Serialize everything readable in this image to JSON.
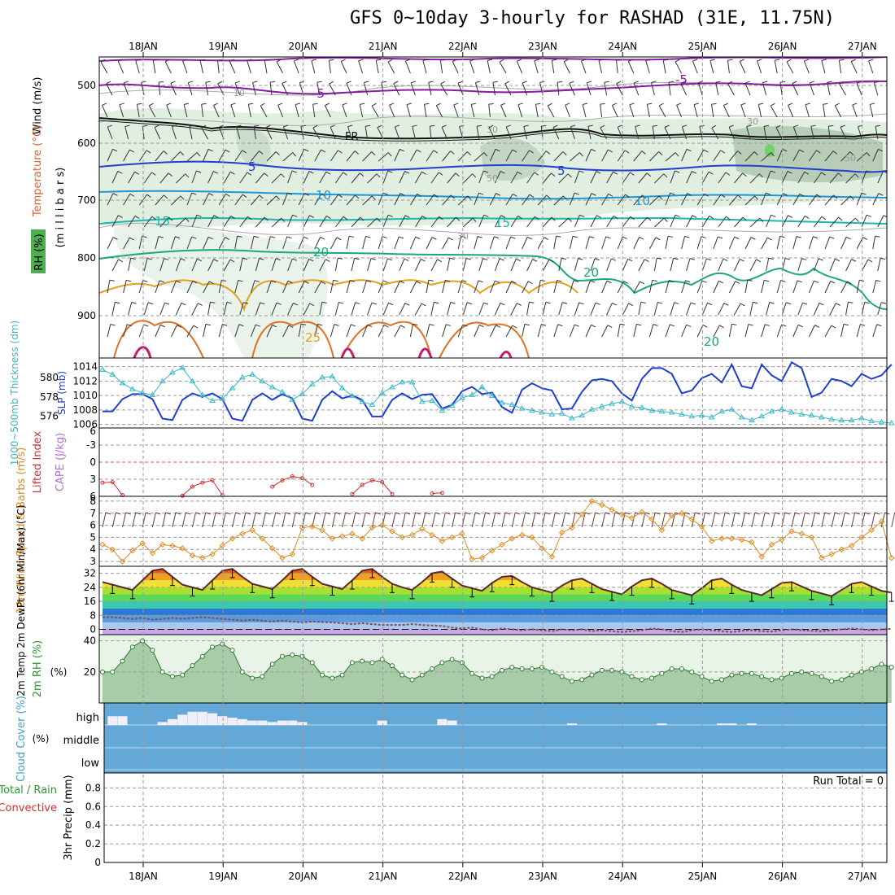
{
  "title": "GFS 0~10day 3-hourly for RASHAD (31E, 11.75N)",
  "dates": [
    "18JAN",
    "19JAN",
    "20JAN",
    "21JAN",
    "22JAN",
    "23JAN",
    "24JAN",
    "25JAN",
    "26JAN",
    "27JAN"
  ],
  "colors": {
    "blue": "#1f3fd0",
    "cyan": "#3ab8c8",
    "orange": "#e08a20",
    "green": "#2a9a2a",
    "purple": "#8a1aa8",
    "red": "#d03030",
    "cloud": "#64a8d8"
  },
  "panels": {
    "upper": {
      "ylabel_wind": "Wind (m/s)",
      "ylabel_temp": "Temperature (°C)",
      "ylabel_rh": "RH (%)",
      "ylabel_mb": "(m i l l i b a r s)",
      "yticks": [
        "500",
        "600",
        "700",
        "800",
        "900"
      ],
      "contours": {
        "m5a": "-5",
        "m5b": "-5",
        "fr": "FR",
        "c5a": "5",
        "c5b": "5",
        "c10a": "10",
        "c10b": "10",
        "c15a": "15",
        "c15b": "15",
        "c20a": "20",
        "c20b": "20",
        "c20c": "20",
        "c25": "25",
        "r30a": "30",
        "r30b": "30",
        "r30c": "30",
        "r50a": "50",
        "r50b": "50",
        "r10": "10"
      }
    },
    "slp": {
      "ylabel_thk": "1000~500mb Thickness (dm)",
      "ylabel_slp": "SLP (mb)",
      "left_ticks": [
        "580",
        "578",
        "576"
      ],
      "right_ticks": [
        "1014",
        "1012",
        "1010",
        "1008",
        "1006"
      ]
    },
    "li": {
      "ylabel_li": "Lifted Index",
      "ylabel_cape": "CAPE (J/kg)",
      "yticks": [
        "-3",
        "0",
        "3",
        "6"
      ],
      "yticks_top": "6"
    },
    "wind": {
      "ylabel": "10m Wind Speed & Barbs (m/s)",
      "yticks": [
        "8",
        "7",
        "6",
        "5",
        "4",
        "3"
      ]
    },
    "temp": {
      "ylabel": "2m Temp 2m DewPt (6hr Min/Max) (°C)",
      "yticks": [
        "32",
        "24",
        "16",
        "8",
        "0"
      ]
    },
    "rh": {
      "ylabel": "2m RH (%)",
      "yticks": [
        "40",
        "20"
      ]
    },
    "cloud": {
      "ylabel": "Cloud Cover (%)",
      "levels": [
        "high",
        "middle",
        "low"
      ]
    },
    "precip": {
      "ylabel_total": "Total / Rain",
      "ylabel_conv": "Convective",
      "ylabel": "3hr Precip (mm)",
      "yticks": [
        "0.8",
        "0.6",
        "0.4",
        "0.2",
        "0"
      ],
      "run_total": "Run Total = 0"
    }
  },
  "chart_data": [
    {
      "type": "line",
      "title": "1000~500mb Thickness (dm) / SLP (mb)",
      "x_hours": [
        0,
        3,
        6,
        9,
        12,
        15,
        18,
        21,
        24,
        27,
        30,
        33,
        36,
        39,
        42,
        45,
        48,
        51,
        54,
        57,
        60,
        63,
        66,
        69,
        72,
        75,
        78,
        81,
        84,
        87,
        90,
        93,
        96,
        99,
        102,
        105,
        108,
        111,
        114,
        117,
        120,
        123,
        126,
        129,
        132,
        135,
        138,
        141,
        144,
        147,
        150,
        153,
        156,
        159,
        162,
        165,
        168,
        171,
        174,
        177,
        180,
        183,
        186,
        189,
        192,
        195,
        198,
        201,
        204,
        207,
        210,
        213,
        216,
        219,
        222,
        225,
        228,
        231,
        234,
        237
      ],
      "series": [
        {
          "name": "SLP",
          "axis": "right",
          "ylim": [
            1005.5,
            1015.2
          ],
          "values": [
            1007.8,
            1007.8,
            1009.5,
            1010.2,
            1010.2,
            1009.5,
            1006.8,
            1006.6,
            1009.4,
            1010.3,
            1009.8,
            1010.3,
            1009.5,
            1006.8,
            1006.5,
            1009.4,
            1010.3,
            1009.4,
            1010.2,
            1009.6,
            1006.8,
            1006.5,
            1009.4,
            1010.6,
            1009.6,
            1010.0,
            1009.4,
            1007.1,
            1007.1,
            1009.4,
            1010.3,
            1009.5,
            1010.1,
            1010.2,
            1008.2,
            1008.7,
            1010.6,
            1011.2,
            1010.2,
            1010.4,
            1008.4,
            1007.6,
            1010.8,
            1011.7,
            1011.0,
            1010.7,
            1008.1,
            1008.2,
            1010.5,
            1012.1,
            1012.3,
            1012.0,
            1010.3,
            1009.3,
            1012.3,
            1013.8,
            1013.8,
            1013.0,
            1010.3,
            1010.7,
            1012.4,
            1013.0,
            1011.8,
            1014.3,
            1011.3,
            1011.0,
            1014.3,
            1012.8,
            1012.0,
            1014.6,
            1013.8,
            1009.8,
            1010.4,
            1012.3,
            1012.0,
            1011.3,
            1013.0,
            1012.3,
            1012.8,
            1014.3
          ]
        },
        {
          "name": "Thickness",
          "axis": "left",
          "ylim": [
            574.8,
            582.0
          ],
          "values": [
            580.8,
            580.3,
            579.4,
            578.8,
            578.4,
            578.2,
            579.6,
            580.5,
            581.0,
            579.6,
            578.2,
            577.6,
            577.8,
            578.9,
            580.0,
            580.3,
            579.6,
            579.0,
            578.5,
            577.7,
            578.3,
            579.3,
            580.0,
            580.1,
            578.9,
            578.1,
            577.5,
            577.2,
            578.4,
            579.0,
            579.5,
            579.5,
            577.5,
            577.6,
            576.6,
            577.1,
            577.9,
            578.2,
            579.0,
            578.1,
            577.4,
            577.2,
            576.8,
            576.6,
            576.4,
            576.2,
            576.3,
            575.8,
            576.1,
            576.7,
            577.0,
            577.3,
            577.5,
            577.0,
            576.9,
            576.6,
            576.5,
            576.4,
            576.2,
            576.0,
            576.1,
            575.9,
            576.5,
            576.7,
            575.9,
            575.6,
            576.0,
            576.5,
            576.7,
            576.4,
            576.2,
            576.1,
            575.9,
            575.7,
            575.6,
            575.6,
            575.8,
            575.5,
            575.4,
            575.3
          ]
        }
      ]
    },
    {
      "type": "line",
      "title": "Lifted Index",
      "ylim": [
        -6,
        6
      ],
      "x_hours": [
        0,
        3,
        6,
        24,
        27,
        30,
        33,
        36,
        51,
        54,
        57,
        60,
        63,
        75,
        78,
        81,
        84,
        87,
        99,
        102
      ],
      "values": [
        3.6,
        3.5,
        5.8,
        5.9,
        4.3,
        3.6,
        3.2,
        5.8,
        4.3,
        3.2,
        2.5,
        2.8,
        4.0,
        5.6,
        4.0,
        3.2,
        3.5,
        5.6,
        5.5,
        5.4
      ]
    },
    {
      "type": "line",
      "title": "10m Wind Speed (m/s)",
      "ylim": [
        2.6,
        8.4
      ],
      "x_hours": [
        0,
        3,
        6,
        9,
        12,
        15,
        18,
        21,
        24,
        27,
        30,
        33,
        36,
        39,
        42,
        45,
        48,
        51,
        54,
        57,
        60,
        63,
        66,
        69,
        72,
        75,
        78,
        81,
        84,
        87,
        90,
        93,
        96,
        99,
        102,
        105,
        108,
        111,
        114,
        117,
        120,
        123,
        126,
        129,
        132,
        135,
        138,
        141,
        144,
        147,
        150,
        153,
        156,
        159,
        162,
        165,
        168,
        171,
        174,
        177,
        180,
        183,
        186,
        189,
        192,
        195,
        198,
        201,
        204,
        207,
        210,
        213,
        216,
        219,
        222,
        225,
        228,
        231,
        234,
        237
      ],
      "values": [
        4.4,
        4.0,
        3.0,
        3.9,
        4.5,
        3.7,
        4.4,
        4.3,
        4.1,
        3.5,
        3.3,
        3.6,
        4.3,
        4.9,
        5.3,
        5.6,
        4.9,
        4.1,
        3.3,
        3.6,
        5.8,
        5.9,
        5.6,
        4.9,
        5.1,
        5.3,
        4.9,
        5.8,
        6.0,
        5.5,
        5.0,
        5.2,
        5.7,
        5.2,
        4.7,
        5.0,
        5.3,
        3.2,
        3.3,
        3.9,
        4.4,
        4.9,
        5.2,
        5.0,
        4.1,
        3.4,
        5.4,
        5.8,
        6.9,
        8.0,
        7.7,
        7.3,
        6.9,
        6.6,
        7.1,
        6.5,
        5.6,
        6.8,
        7.0,
        6.5,
        5.9,
        4.7,
        4.9,
        4.9,
        4.8,
        4.6,
        3.4,
        4.4,
        4.8,
        5.5,
        5.3,
        5.0,
        3.3,
        3.6,
        4.0,
        4.3,
        5.0,
        5.6,
        6.3,
        3.3
      ]
    },
    {
      "type": "area",
      "title": "2m Temp (°C)",
      "ylim": [
        -3,
        36
      ],
      "x_hours": [
        0,
        3,
        6,
        9,
        12,
        15,
        18,
        21,
        24,
        27,
        30,
        33,
        36,
        39,
        42,
        45,
        48,
        51,
        54,
        57,
        60,
        63,
        66,
        69,
        72,
        75,
        78,
        81,
        84,
        87,
        90,
        93,
        96,
        99,
        102,
        105,
        108,
        111,
        114,
        117,
        120,
        123,
        126,
        129,
        132,
        135,
        138,
        141,
        144,
        147,
        150,
        153,
        156,
        159,
        162,
        165,
        168,
        171,
        174,
        177,
        180,
        183,
        186,
        189,
        192,
        195,
        198,
        201,
        204,
        207,
        210,
        213,
        216,
        219,
        222,
        225,
        228,
        231,
        234,
        237
      ],
      "series": [
        {
          "name": "2m Temp",
          "values": [
            27,
            25.5,
            24,
            22.5,
            28,
            33.5,
            34.5,
            30,
            25.5,
            24,
            22.5,
            28,
            33.5,
            34.5,
            30,
            26,
            24.5,
            23,
            28,
            33.5,
            34.5,
            30,
            26,
            24.5,
            23,
            28,
            33.5,
            34.5,
            30,
            26,
            24,
            22.5,
            27,
            32,
            33,
            29,
            25,
            23.5,
            22,
            26.5,
            30,
            30.5,
            27,
            24,
            22.5,
            21,
            25,
            28,
            29,
            26,
            23,
            21.5,
            20,
            24.5,
            28,
            29,
            26,
            22.5,
            21,
            19.5,
            23.5,
            28,
            29,
            25.5,
            22.5,
            21,
            19.5,
            23,
            26.5,
            27,
            24.5,
            22,
            20.5,
            19,
            22.5,
            26,
            27,
            24.5,
            22,
            21
          ]
        },
        {
          "name": "2m DewPt",
          "values": [
            7,
            7,
            6.5,
            6,
            6.5,
            5.5,
            6,
            6.5,
            6,
            6.5,
            7,
            6.5,
            6,
            5.5,
            5,
            5.5,
            5,
            4.5,
            5,
            4.5,
            4,
            4.5,
            4.2,
            4,
            3.5,
            3,
            3.5,
            3,
            2.5,
            2.5,
            2.5,
            3,
            2.5,
            2.2,
            2,
            1,
            0.5,
            1,
            0,
            -0.5,
            0.5,
            0,
            -0.5,
            0,
            -0.5,
            -1,
            0,
            -0.5,
            0,
            -1,
            -0.5,
            -1,
            -1.5,
            -1,
            -0.5,
            0.5,
            0,
            -1,
            -1.5,
            -0.5,
            0,
            -0.5,
            -1,
            -1.5,
            -0.8,
            -0.5,
            -1,
            -1.2,
            -0.5,
            0,
            -0.5,
            -0.8,
            -1,
            -0.5,
            0,
            0.5,
            0,
            -0.5,
            0,
            0.3
          ]
        }
      ]
    },
    {
      "type": "area",
      "title": "2m RH (%)",
      "ylim": [
        0,
        44
      ],
      "x_hours": [
        0,
        3,
        6,
        9,
        12,
        15,
        18,
        21,
        24,
        27,
        30,
        33,
        36,
        39,
        42,
        45,
        48,
        51,
        54,
        57,
        60,
        63,
        66,
        69,
        72,
        75,
        78,
        81,
        84,
        87,
        90,
        93,
        96,
        99,
        102,
        105,
        108,
        111,
        114,
        117,
        120,
        123,
        126,
        129,
        132,
        135,
        138,
        141,
        144,
        147,
        150,
        153,
        156,
        159,
        162,
        165,
        168,
        171,
        174,
        177,
        180,
        183,
        186,
        189,
        192,
        195,
        198,
        201,
        204,
        207,
        210,
        213,
        216,
        219,
        222,
        225,
        228,
        231,
        234,
        237
      ],
      "values": [
        20,
        20,
        27,
        36,
        40,
        34,
        20,
        17,
        18,
        24,
        30,
        36,
        38,
        34,
        20,
        16,
        17,
        25,
        30,
        31,
        30,
        26,
        18,
        16,
        18,
        26,
        27,
        26,
        28,
        24,
        18,
        15,
        18,
        22,
        26,
        28,
        26,
        19,
        16,
        17,
        21,
        23,
        22,
        22,
        23,
        20,
        17,
        14,
        15,
        18,
        21,
        21,
        20,
        17,
        15,
        16,
        19,
        22,
        22,
        20,
        17,
        14,
        15,
        18,
        19,
        19,
        17,
        15,
        16,
        19,
        20,
        19,
        17,
        14,
        15,
        18,
        20,
        22,
        25,
        23
      ]
    },
    {
      "type": "bar",
      "title": "Cloud Cover high (%)",
      "ylim": [
        0,
        100
      ],
      "x_hours": [
        3,
        6,
        18,
        21,
        24,
        27,
        30,
        33,
        36,
        39,
        42,
        45,
        48,
        51,
        54,
        57,
        60,
        84,
        102,
        105,
        141,
        168,
        186,
        189,
        195
      ],
      "values": [
        60,
        60,
        20,
        40,
        70,
        90,
        90,
        80,
        60,
        50,
        40,
        30,
        30,
        20,
        30,
        30,
        20,
        30,
        40,
        30,
        10,
        10,
        10,
        10,
        10
      ]
    }
  ]
}
